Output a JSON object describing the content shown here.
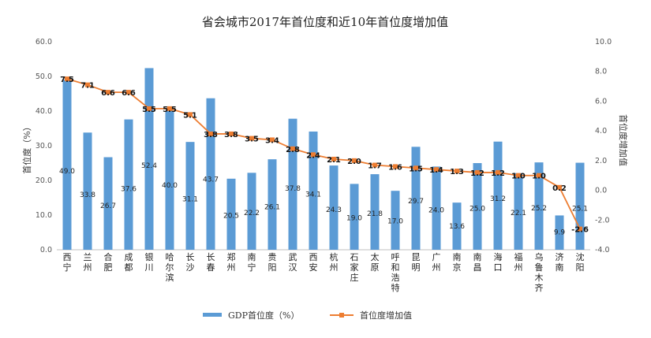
{
  "chart_data": {
    "type": "bar",
    "title": "省会城市2017年首位度和近10年首位度增加值",
    "categories": [
      "西宁",
      "兰州",
      "合肥",
      "成都",
      "银川",
      "哈尔滨",
      "长沙",
      "长春",
      "郑州",
      "南宁",
      "贵阳",
      "武汉",
      "西安",
      "杭州",
      "石家庄",
      "太原",
      "呼和浩特",
      "昆明",
      "广州",
      "南京",
      "南昌",
      "海口",
      "福州",
      "乌鲁木齐",
      "济南",
      "沈阳"
    ],
    "series": [
      {
        "name": "GDP首位度（%）",
        "type": "bar",
        "color": "#5b9bd5",
        "axis": "left",
        "values": [
          49.0,
          33.8,
          26.7,
          37.6,
          52.4,
          40.0,
          31.1,
          43.7,
          20.5,
          22.2,
          26.1,
          37.8,
          34.1,
          24.3,
          19.0,
          21.8,
          17.0,
          29.7,
          24.0,
          13.6,
          25.0,
          31.2,
          22.1,
          25.2,
          9.9,
          25.1
        ]
      },
      {
        "name": "首位度增加值",
        "type": "line",
        "color": "#ed7d31",
        "axis": "right",
        "values": [
          7.5,
          7.1,
          6.6,
          6.6,
          5.5,
          5.5,
          5.1,
          3.8,
          3.8,
          3.5,
          3.4,
          2.8,
          2.4,
          2.1,
          2.0,
          1.7,
          1.6,
          1.5,
          1.4,
          1.3,
          1.2,
          1.2,
          1.0,
          1.0,
          0.2,
          -2.6
        ]
      }
    ],
    "ylabel": "首位度（%）",
    "y2label": "首位度增加值",
    "ylim": [
      0,
      60
    ],
    "y2lim": [
      -4,
      10
    ],
    "yticks": [
      "0.0",
      "10.0",
      "20.0",
      "30.0",
      "40.0",
      "50.0",
      "60.0"
    ],
    "y2ticks": [
      "-4.0",
      "-2.0",
      "0.0",
      "2.0",
      "4.0",
      "6.0",
      "8.0",
      "10.0"
    ],
    "legend_position": "bottom",
    "grid": false
  }
}
